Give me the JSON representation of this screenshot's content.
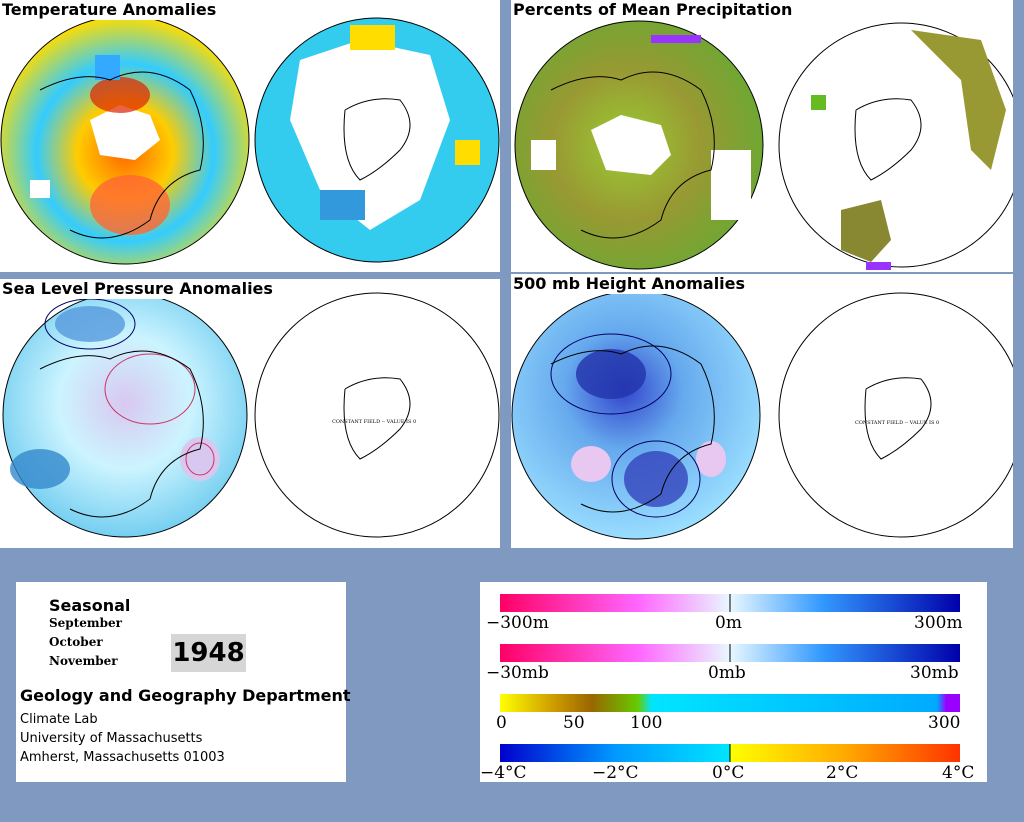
{
  "panels": {
    "temperature": {
      "title": "Temperature Anomalies"
    },
    "precipitation": {
      "title": "Percents of Mean Precipitation"
    },
    "sea_level_pressure": {
      "title": "Sea Level Pressure Anomalies",
      "constant_field": "CONSTANT FIELD -- VALUE IS 0"
    },
    "height_500mb": {
      "title": "500 mb Height Anomalies",
      "constant_field": "CONSTANT FIELD -- VALUE IS 0"
    }
  },
  "info": {
    "season_label": "Seasonal",
    "months": [
      "September",
      "October",
      "November"
    ],
    "year": "1948",
    "department": "Geology and Geography Department",
    "address_lines": [
      "Climate Lab",
      "University of Massachusetts",
      "Amherst, Massachusetts 01003"
    ]
  },
  "legends": {
    "height": {
      "labels": [
        "−300m",
        "0m",
        "300m"
      ],
      "colors": [
        "#ff0066",
        "#e8e8ff",
        "#0000aa"
      ]
    },
    "pressure": {
      "labels": [
        "−30mb",
        "0mb",
        "30mb"
      ],
      "colors": [
        "#ff0066",
        "#e8e8ff",
        "#0000aa"
      ]
    },
    "precip": {
      "labels": [
        "0",
        "50",
        "100",
        "300"
      ],
      "colors": [
        "#ffff00",
        "#996600",
        "#66cc00",
        "#00e5ff",
        "#9900ff"
      ]
    },
    "temp": {
      "labels": [
        "−4°C",
        "−2°C",
        "0°C",
        "2°C",
        "4°C"
      ],
      "colors": [
        "#0000cc",
        "#00e5ff",
        "#ffff00",
        "#ff3300"
      ]
    }
  }
}
